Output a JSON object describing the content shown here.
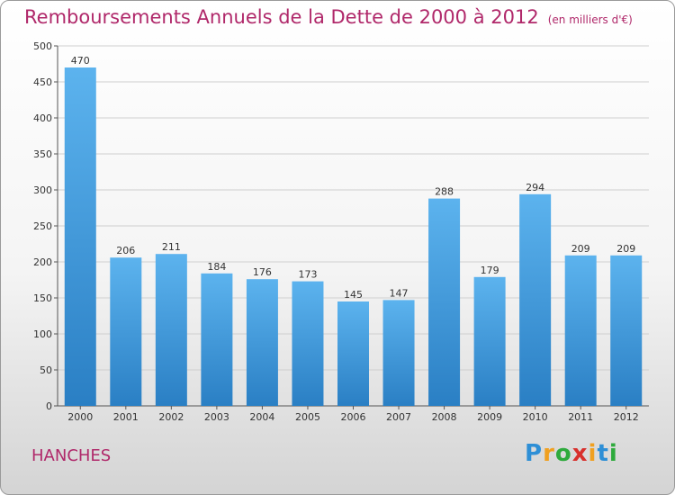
{
  "title": "Remboursements Annuels de la Dette de 2000 à 2012",
  "unit": "(en milliers d'€)",
  "commune": "HANCHES",
  "logo": {
    "text": "Proxiti",
    "letters": [
      "P",
      "r",
      "o",
      "x",
      "i",
      "t",
      "i"
    ],
    "colors": [
      "#2e8fd6",
      "#f0a020",
      "#2eaa3c",
      "#d8302c",
      "#f0a020",
      "#2e8fd6",
      "#2eaa3c"
    ]
  },
  "colors": {
    "bar": "#4aa3e3",
    "title": "#b0286a"
  },
  "chart_data": {
    "type": "bar",
    "title": "Remboursements Annuels de la Dette de 2000 à 2012",
    "subtitle": "(en milliers d'€)",
    "categories": [
      "2000",
      "2001",
      "2002",
      "2003",
      "2004",
      "2005",
      "2006",
      "2007",
      "2008",
      "2009",
      "2010",
      "2011",
      "2012"
    ],
    "values": [
      470,
      206,
      211,
      184,
      176,
      173,
      145,
      147,
      288,
      179,
      294,
      209,
      209
    ],
    "ylim": [
      0,
      500
    ],
    "yticks": [
      0,
      50,
      100,
      150,
      200,
      250,
      300,
      350,
      400,
      450,
      500
    ],
    "grid": true,
    "legend": "none"
  }
}
